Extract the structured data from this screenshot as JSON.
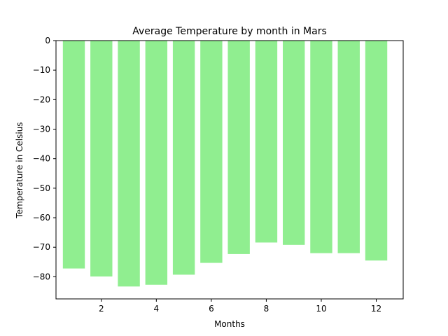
{
  "chart_data": {
    "type": "bar",
    "title": "Average Temperature by month in Mars",
    "xlabel": "Months",
    "ylabel": "Temperature in Celsius",
    "x": [
      1,
      2,
      3,
      4,
      5,
      6,
      7,
      8,
      9,
      10,
      11,
      12
    ],
    "values": [
      -77.2,
      -79.9,
      -83.3,
      -82.7,
      -79.3,
      -75.3,
      -72.3,
      -68.4,
      -69.2,
      -72.0,
      -72.0,
      -74.5
    ],
    "xlim": [
      0.35,
      12.98
    ],
    "ylim": [
      -87.5,
      0
    ],
    "xticks": [
      2,
      4,
      6,
      8,
      10,
      12
    ],
    "yticks": [
      0,
      -10,
      -20,
      -30,
      -40,
      -50,
      -60,
      -70,
      -80
    ],
    "xtick_labels": [
      "2",
      "4",
      "6",
      "8",
      "10",
      "12"
    ],
    "ytick_labels": [
      "0",
      "−10",
      "−20",
      "−30",
      "−40",
      "−50",
      "−60",
      "−70",
      "−80"
    ],
    "bar_color": "#90ee90",
    "grid": false,
    "legend": "none"
  }
}
